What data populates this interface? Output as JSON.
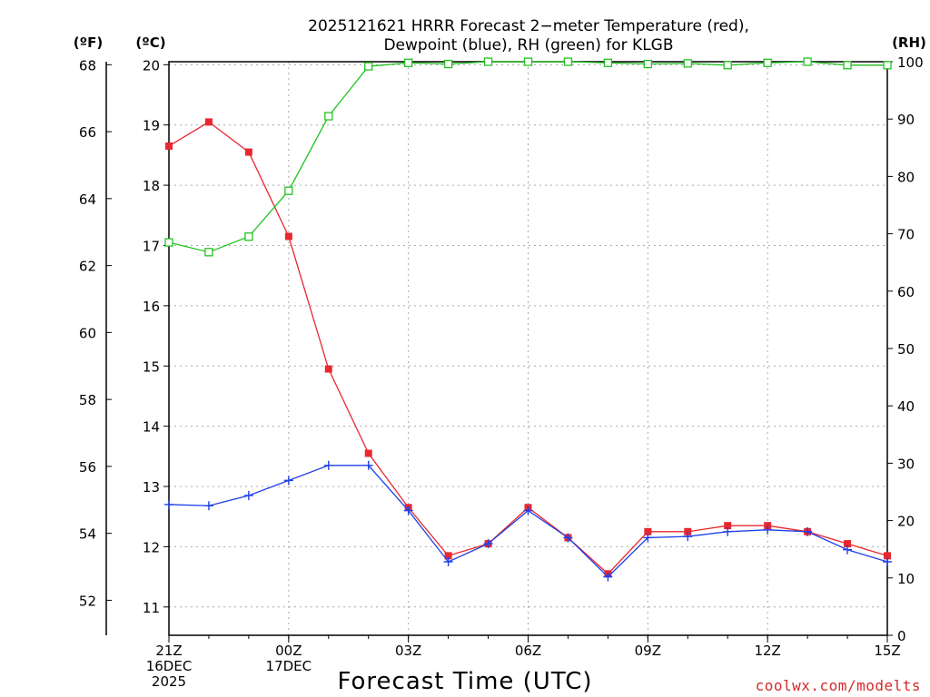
{
  "chart_data": {
    "type": "line",
    "title_line1": "2025121621 HRRR Forecast 2−meter Temperature (red),",
    "title_line2": "Dewpoint (blue), RH (green) for KLGB",
    "xlabel": "Forecast Time (UTC)",
    "credit": "coolwx.com/modelts",
    "units": {
      "fahrenheit": "(ºF)",
      "celsius": "(ºC)",
      "rh": "(RH)"
    },
    "x_hours": [
      0,
      1,
      2,
      3,
      4,
      5,
      6,
      7,
      8,
      9,
      10,
      11,
      12,
      13,
      14,
      15,
      16,
      17,
      18
    ],
    "x_ticks": [
      {
        "hour": 0,
        "lines": [
          "21Z",
          "16DEC",
          "2025"
        ]
      },
      {
        "hour": 3,
        "lines": [
          "00Z",
          "17DEC"
        ]
      },
      {
        "hour": 6,
        "lines": [
          "03Z"
        ]
      },
      {
        "hour": 9,
        "lines": [
          "06Z"
        ]
      },
      {
        "hour": 12,
        "lines": [
          "09Z"
        ]
      },
      {
        "hour": 15,
        "lines": [
          "12Z"
        ]
      },
      {
        "hour": 18,
        "lines": [
          "15Z"
        ]
      }
    ],
    "ylim_celsius": [
      10.53,
      20.05
    ],
    "y_ticks_celsius": [
      11,
      12,
      13,
      14,
      15,
      16,
      17,
      18,
      19,
      20
    ],
    "y_ticks_fahrenheit": [
      52,
      54,
      56,
      58,
      60,
      62,
      64,
      66,
      68
    ],
    "ylim_rh": [
      0,
      100
    ],
    "y_ticks_rh": [
      0,
      10,
      20,
      30,
      40,
      50,
      60,
      70,
      80,
      90,
      100
    ],
    "series": [
      {
        "name": "Temperature",
        "axis": "celsius",
        "color": "#e8282e",
        "marker": "filled-square",
        "values": [
          18.65,
          19.05,
          18.55,
          17.15,
          14.95,
          13.55,
          12.65,
          11.85,
          12.05,
          12.65,
          12.15,
          11.55,
          12.25,
          12.25,
          12.35,
          12.35,
          12.25,
          12.05,
          11.85
        ]
      },
      {
        "name": "Dewpoint",
        "axis": "celsius",
        "color": "#2040e8",
        "marker": "plus",
        "values": [
          12.7,
          12.68,
          12.85,
          13.1,
          13.35,
          13.35,
          12.6,
          11.75,
          12.05,
          12.6,
          12.15,
          11.5,
          12.15,
          12.17,
          12.25,
          12.28,
          12.25,
          11.95,
          11.75
        ]
      },
      {
        "name": "RH",
        "axis": "rh",
        "color": "#22c322",
        "marker": "open-square",
        "values": [
          68.5,
          66.8,
          69.5,
          77.5,
          90.5,
          99.2,
          99.8,
          99.6,
          100,
          100,
          100,
          99.8,
          99.6,
          99.7,
          99.4,
          99.8,
          100,
          99.4,
          99.4
        ]
      }
    ]
  }
}
